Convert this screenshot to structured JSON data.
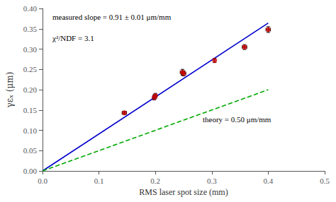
{
  "chart_data": {
    "type": "scatter",
    "xlabel": "RMS laser spot size (mm)",
    "ylabel": "γεₓ (μm)",
    "xlim": [
      0,
      0.5
    ],
    "ylim": [
      0,
      0.4
    ],
    "xticks": [
      {
        "value": 0,
        "label": "0.0"
      },
      0.1,
      0.2,
      0.3,
      0.4,
      0.5
    ],
    "yticks": [
      {
        "value": 0,
        "label": "0.00"
      },
      0.05,
      {
        "value": 0.1,
        "label": "0.10"
      },
      0.15,
      {
        "value": 0.2,
        "label": "0.20"
      },
      0.25,
      {
        "value": 0.3,
        "label": "0.30"
      },
      0.35,
      {
        "value": 0.4,
        "label": "0.40"
      }
    ],
    "grid": false,
    "annotations": [
      "measured slope = 0.91 ± 0.01 μm/mm",
      "χ²/NDF = 3.1",
      "theory = 0.50 μm/mm"
    ],
    "series": [
      {
        "type": "line",
        "color": "#0000cc",
        "line_style": "solid",
        "x": [
          0,
          0.4
        ],
        "values": [
          0,
          0.364
        ]
      },
      {
        "type": "line",
        "color": "#00aa00",
        "line_style": "dashed",
        "x": [
          0,
          0.4
        ],
        "values": [
          0,
          0.2
        ]
      },
      {
        "type": "scatter",
        "color": "#cc0000",
        "marker": "circle",
        "x": [
          0.145,
          0.198,
          0.2,
          0.248,
          0.25,
          0.305,
          0.358,
          0.4
        ],
        "values": [
          0.143,
          0.181,
          0.185,
          0.243,
          0.24,
          0.272,
          0.305,
          0.348
        ],
        "xerr": [
          0.004,
          0.003,
          0.003,
          0.004,
          0.004,
          0.0,
          0.004,
          0.004
        ],
        "yerr": [
          0.004,
          0.006,
          0.006,
          0.007,
          0.006,
          0.005,
          0.006,
          0.007
        ]
      }
    ]
  }
}
